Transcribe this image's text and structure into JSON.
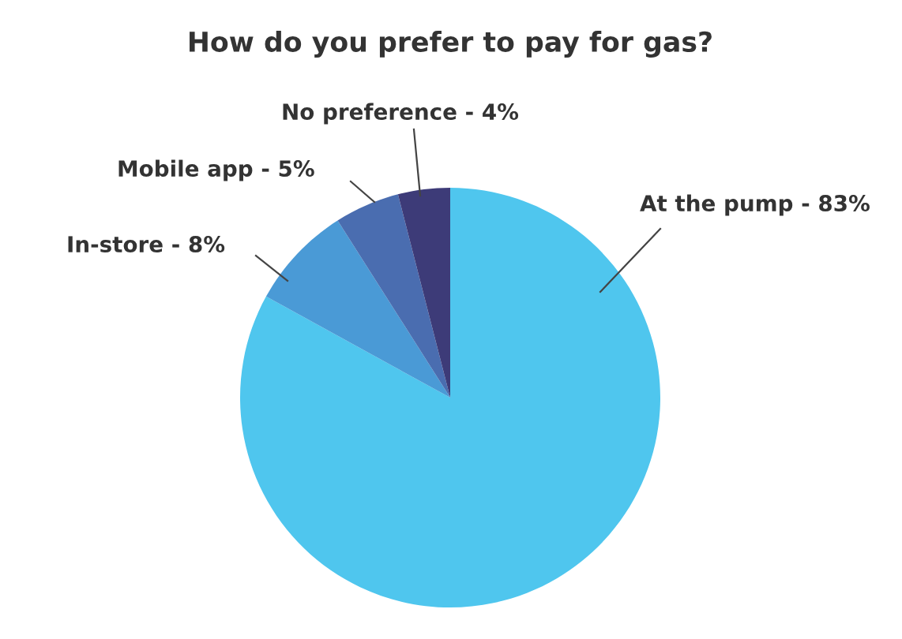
{
  "chart_data": {
    "type": "pie",
    "title": "How do you prefer to pay for gas?",
    "categories": [
      "At the pump - 83%",
      "In-store - 8%",
      "Mobile app - 5%",
      "No preference - 4%"
    ],
    "values": [
      83,
      8,
      5,
      4
    ],
    "colors": [
      "#4fc6ee",
      "#4a9ad6",
      "#4a6db0",
      "#3d3b78"
    ]
  }
}
